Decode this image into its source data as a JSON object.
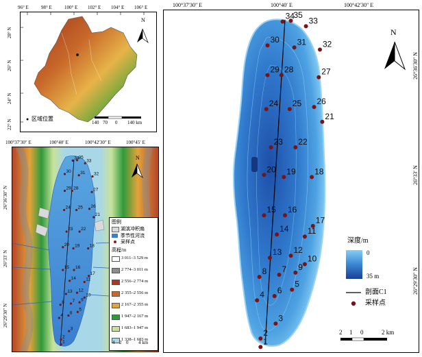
{
  "yunnan_map": {
    "lon_ticks": [
      "96° E",
      "98° E",
      "100° E",
      "102° E",
      "104° E",
      "106° E"
    ],
    "lat_ticks": [
      "28° N",
      "26° N",
      "24° N",
      "22° N"
    ],
    "north_label": "N",
    "location_legend": "区域位置",
    "scale_labels": [
      "140",
      "70",
      "0",
      "140 km"
    ]
  },
  "relief_map": {
    "lon_ticks": [
      "100°37′30″ E",
      "100°40′ E",
      "100°42′30″ E",
      "100°45′ E"
    ],
    "lat_ticks": [
      "26°36′30″ N",
      "26°33′ N",
      "26°29′30″ N"
    ],
    "north_label": "N",
    "legend_title": "图例",
    "legend_items": [
      "湖滨冲积扇",
      "季节性河流",
      "采样点"
    ],
    "elevation_title": "高程/m",
    "elevation_classes": [
      {
        "label": "3 011–3 529 m",
        "color": "#ffffff"
      },
      {
        "label": "2 774–3 011 m",
        "color": "#8c8c8c"
      },
      {
        "label": "2 556–2 774 m",
        "color": "#a63a22"
      },
      {
        "label": "2 355–2 556 m",
        "color": "#c96a2c"
      },
      {
        "label": "2 167–2 355 m",
        "color": "#e3a23a"
      },
      {
        "label": "1 947–2 167 m",
        "color": "#2f9a3b"
      },
      {
        "label": "1 683–1 947 m",
        "color": "#c8e29a"
      },
      {
        "label": "1 338–1 683 m",
        "color": "#a8d7e8"
      }
    ],
    "scale_labels": [
      "4",
      "2",
      "0",
      "4 km"
    ],
    "point_ids": [
      "35",
      "34",
      "33",
      "30",
      "31",
      "32",
      "29",
      "28",
      "27",
      "24",
      "25",
      "26",
      "21",
      "23",
      "22",
      "20",
      "19",
      "18",
      "15",
      "16",
      "17",
      "14",
      "13",
      "12",
      "11",
      "8",
      "7",
      "9",
      "10",
      "4",
      "6",
      "5",
      "3",
      "2",
      "1"
    ]
  },
  "lake_map": {
    "lon_ticks": [
      "100°37′30″ E",
      "100°40′ E",
      "100°42′30″ E"
    ],
    "lat_ticks": [
      "26°36′30″ N",
      "26°33′ N",
      "26°29′30″ N"
    ],
    "north_label": "N",
    "depth_title": "深度/m",
    "depth_max_label": "0",
    "depth_min_label": "35 m",
    "profile_label": "剖面C1",
    "sample_label": "采样点",
    "scale_labels": [
      "2",
      "1",
      "0",
      "2 km"
    ],
    "points": [
      {
        "id": "35",
        "x": 0.5,
        "y": 0.02
      },
      {
        "id": "34",
        "x": -0.2,
        "y": 0.04
      },
      {
        "id": "33",
        "x": 1.8,
        "y": 0.15
      },
      {
        "id": "30",
        "x": -1.5,
        "y": 0.6
      },
      {
        "id": "31",
        "x": 0.8,
        "y": 0.65
      },
      {
        "id": "32",
        "x": 3.0,
        "y": 0.7
      },
      {
        "id": "29",
        "x": -1.5,
        "y": 1.3
      },
      {
        "id": "28",
        "x": -0.3,
        "y": 1.3
      },
      {
        "id": "27",
        "x": 2.9,
        "y": 1.35
      },
      {
        "id": "24",
        "x": -1.6,
        "y": 2.1
      },
      {
        "id": "25",
        "x": 0.4,
        "y": 2.1
      },
      {
        "id": "26",
        "x": 2.5,
        "y": 2.05
      },
      {
        "id": "21",
        "x": 3.2,
        "y": 2.4
      },
      {
        "id": "23",
        "x": -1.2,
        "y": 3.0
      },
      {
        "id": "22",
        "x": 0.9,
        "y": 3.0
      },
      {
        "id": "20",
        "x": -1.8,
        "y": 3.65
      },
      {
        "id": "19",
        "x": -0.1,
        "y": 3.7
      },
      {
        "id": "18",
        "x": 2.3,
        "y": 3.7
      },
      {
        "id": "15",
        "x": -1.8,
        "y": 4.6
      },
      {
        "id": "16",
        "x": 0.0,
        "y": 4.6
      },
      {
        "id": "17",
        "x": 2.4,
        "y": 4.85
      },
      {
        "id": "14",
        "x": -0.7,
        "y": 5.05
      },
      {
        "id": "11",
        "x": 1.7,
        "y": 5.1
      },
      {
        "id": "13",
        "x": -1.3,
        "y": 5.6
      },
      {
        "id": "12",
        "x": 0.5,
        "y": 5.55
      },
      {
        "id": "10",
        "x": 1.7,
        "y": 5.75
      },
      {
        "id": "9",
        "x": 0.9,
        "y": 5.95
      },
      {
        "id": "8",
        "x": -2.2,
        "y": 6.05
      },
      {
        "id": "7",
        "x": -0.5,
        "y": 6.0
      },
      {
        "id": "5",
        "x": 0.6,
        "y": 6.35
      },
      {
        "id": "6",
        "x": -0.9,
        "y": 6.5
      },
      {
        "id": "4",
        "x": -2.4,
        "y": 6.6
      },
      {
        "id": "3",
        "x": -0.8,
        "y": 7.15
      },
      {
        "id": "2",
        "x": -2.1,
        "y": 7.5
      },
      {
        "id": "1",
        "x": -2.1,
        "y": 7.7
      }
    ]
  }
}
